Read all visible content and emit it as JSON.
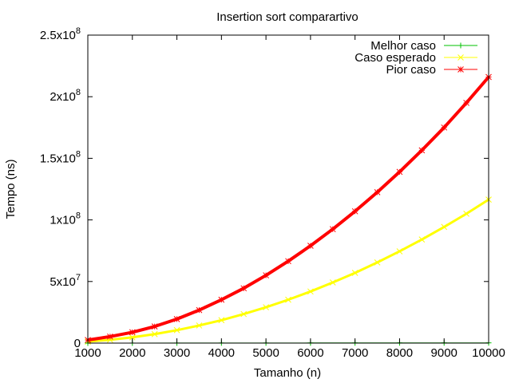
{
  "chart_data": {
    "type": "line",
    "title": "Insertion sort comparartivo",
    "xlabel": "Tamanho (n)",
    "ylabel": "Tempo (ns)",
    "xlim": [
      1000,
      10000
    ],
    "ylim": [
      0,
      250000000
    ],
    "x_ticks": [
      1000,
      2000,
      3000,
      4000,
      5000,
      6000,
      7000,
      8000,
      9000,
      10000
    ],
    "x_tick_labels": [
      "1000",
      "2000",
      "3000",
      "4000",
      "5000",
      "6000",
      "7000",
      "8000",
      "9000",
      "10000"
    ],
    "y_ticks": [
      0,
      50000000,
      100000000,
      150000000,
      200000000,
      250000000
    ],
    "y_tick_labels": [
      {
        "base": "0",
        "exp": ""
      },
      {
        "base": "5x10",
        "exp": "7"
      },
      {
        "base": "1x10",
        "exp": "8"
      },
      {
        "base": "1.5x10",
        "exp": "8"
      },
      {
        "base": "2x10",
        "exp": "8"
      },
      {
        "base": "2.5x10",
        "exp": "8"
      }
    ],
    "grid": false,
    "legend_position": "top-right",
    "series": [
      {
        "name": "Melhor caso",
        "color": "#00c000",
        "marker": "plus",
        "x": [
          1000,
          2000,
          3000,
          4000,
          5000,
          6000,
          7000,
          8000,
          9000,
          10000
        ],
        "y": [
          20000,
          40000,
          60000,
          80000,
          100000,
          120000,
          140000,
          160000,
          180000,
          200000
        ]
      },
      {
        "name": "Caso esperado",
        "color": "#ffff00",
        "marker": "x",
        "x": [
          1000,
          1500,
          2000,
          2500,
          3000,
          3500,
          4000,
          4500,
          5000,
          5500,
          6000,
          6500,
          7000,
          7500,
          8000,
          8500,
          9000,
          9500,
          10000
        ],
        "y": [
          1200000,
          2700000,
          4700000,
          7300000,
          10500000,
          14300000,
          18600000,
          23600000,
          29100000,
          35200000,
          41900000,
          49200000,
          57000000,
          65500000,
          74500000,
          84100000,
          94300000,
          105000000,
          116500000
        ]
      },
      {
        "name": "Pior caso",
        "color": "#ff0000",
        "marker": "star",
        "x": [
          1000,
          1500,
          2000,
          2500,
          3000,
          3500,
          4000,
          4500,
          5000,
          5500,
          6000,
          6500,
          7000,
          7500,
          8000,
          8500,
          9000,
          9500,
          10000
        ],
        "y": [
          2500000,
          5300000,
          8800000,
          13500000,
          19500000,
          26800000,
          35200000,
          44500000,
          55000000,
          66500000,
          79000000,
          92500000,
          107000000,
          122500000,
          139000000,
          156500000,
          175000000,
          195000000,
          216000000
        ]
      }
    ]
  }
}
